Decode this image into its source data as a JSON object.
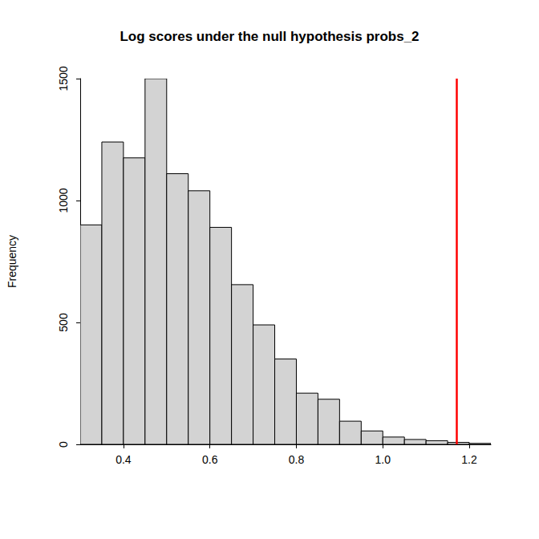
{
  "chart_data": {
    "type": "histogram",
    "title": "Log scores under the null hypothesis probs_2",
    "y_label": "Frequency",
    "bins": [
      0.3,
      0.35,
      0.4,
      0.45,
      0.5,
      0.55,
      0.6,
      0.65,
      0.7,
      0.75,
      0.8,
      0.85,
      0.9,
      0.95,
      1.0,
      1.05,
      1.1,
      1.15,
      1.2,
      1.25
    ],
    "values": [
      900,
      1240,
      1175,
      1500,
      1110,
      1040,
      890,
      655,
      490,
      350,
      210,
      185,
      95,
      55,
      30,
      20,
      15,
      8,
      4
    ],
    "color": "#d3d3d3",
    "xlim": [
      0.3,
      1.25
    ],
    "xticks": [
      0.4,
      0.6,
      0.8,
      {
        "value": 1,
        "label": "1.0"
      },
      1.2
    ],
    "ylim": [
      0,
      1500
    ],
    "yticks": [
      0,
      500,
      1000,
      1500
    ],
    "grid": false,
    "reference_line": {
      "x": 1.167,
      "color": "#ff0000"
    }
  }
}
